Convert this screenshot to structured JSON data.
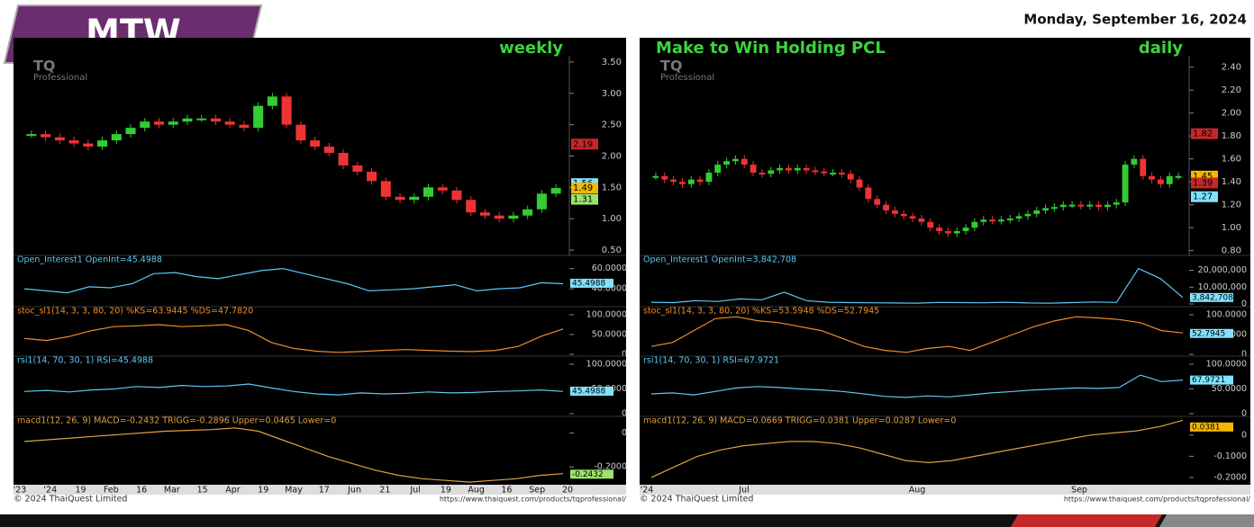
{
  "header": {
    "ticker": "MTW",
    "date": "Monday, September 16, 2024"
  },
  "charts": [
    {
      "title": "weekly",
      "watermark": "TQ",
      "watermark_sub": "Professional",
      "price": {
        "ylim": [
          0.4,
          3.6
        ],
        "yticks": [
          {
            "value": 0.5,
            "label": "0.50"
          },
          {
            "value": 1,
            "label": "1.00"
          },
          {
            "value": 1.5,
            "label": "1.50"
          },
          {
            "value": 2,
            "label": "2.00"
          },
          {
            "value": 2.5,
            "label": "2.50"
          },
          {
            "value": 3,
            "label": "3.00"
          },
          {
            "value": 3.5,
            "label": "3.50"
          }
        ],
        "closes": [
          2.35,
          2.3,
          2.25,
          2.2,
          2.15,
          2.25,
          2.35,
          2.45,
          2.55,
          2.5,
          2.55,
          2.6,
          2.6,
          2.55,
          2.5,
          2.45,
          2.8,
          2.95,
          2.5,
          2.25,
          2.15,
          2.05,
          1.85,
          1.75,
          1.6,
          1.35,
          1.3,
          1.35,
          1.5,
          1.45,
          1.3,
          1.1,
          1.05,
          1.0,
          1.05,
          1.15,
          1.4,
          1.49
        ],
        "tags": [
          2.19,
          1.56,
          1.49,
          1.31
        ],
        "tag_colors": [
          "#c62828",
          "#7fe3ff",
          "#f5b800",
          "#9be36a"
        ]
      },
      "panels": [
        {
          "label": "Open_Interest1 OpenInt=45.4988",
          "color": "#5bc8f5",
          "ylim": [
            25,
            65
          ],
          "yticks": [
            {
              "value": 60,
              "label": "60.0000"
            },
            {
              "value": 40,
              "label": "40.0000"
            }
          ],
          "values": [
            40,
            38,
            36,
            42,
            41,
            45,
            55,
            56,
            52,
            50,
            54,
            58,
            60,
            55,
            50,
            45,
            38,
            39,
            40,
            42,
            44,
            38,
            40,
            41,
            46,
            45
          ],
          "tags": [
            45.4988
          ],
          "tag_colors": [
            "#7fe3ff"
          ]
        },
        {
          "label": "stoc_sl1(14, 3, 3, 80, 20) %KS=63.9445 %DS=47.7820",
          "color": "#f08c2a",
          "ylim": [
            0,
            100
          ],
          "yticks": [
            {
              "value": 100,
              "label": "100.0000"
            },
            {
              "value": 50,
              "label": "50.0000"
            },
            0
          ],
          "values": [
            40,
            35,
            45,
            60,
            70,
            72,
            75,
            70,
            72,
            75,
            60,
            30,
            15,
            8,
            5,
            7,
            10,
            12,
            10,
            8,
            7,
            10,
            20,
            45,
            64
          ],
          "tags": [],
          "tag_colors": []
        },
        {
          "label": "rsi1(14, 70, 30, 1) RSI=45.4988",
          "color": "#5bc8f5",
          "ylim": [
            0,
            100
          ],
          "yticks": [
            {
              "value": 100,
              "label": "100.0000"
            },
            {
              "value": 50,
              "label": "50.0000"
            },
            0
          ],
          "values": [
            45,
            47,
            44,
            48,
            50,
            55,
            53,
            57,
            55,
            56,
            60,
            52,
            45,
            40,
            38,
            42,
            40,
            41,
            44,
            42,
            43,
            45,
            46,
            48,
            45
          ],
          "tags": [
            45.4988
          ],
          "tag_colors": [
            "#7fe3ff"
          ]
        },
        {
          "label": "macd1(12, 26, 9) MACD=-0.2432 TRIGG=-0.2896 Upper=0.0465 Lower=0",
          "color": "#e0a040",
          "ylim": [
            -0.3,
            0.05
          ],
          "yticks": [
            0,
            {
              "value": -0.2,
              "label": "-0.2000"
            }
          ],
          "values": [
            -0.05,
            -0.04,
            -0.03,
            -0.02,
            -0.01,
            0,
            0.01,
            0.015,
            0.02,
            0.03,
            0.01,
            -0.04,
            -0.09,
            -0.14,
            -0.18,
            -0.22,
            -0.25,
            -0.27,
            -0.28,
            -0.29,
            -0.28,
            -0.27,
            -0.25,
            -0.24
          ],
          "tags": [
            -0.2432,
            -0.2896
          ],
          "tag_colors": [
            "#9be36a",
            "#f5b800"
          ]
        }
      ],
      "x_labels": [
        "'23",
        "'24",
        "19",
        "Feb",
        "16",
        "Mar",
        "15",
        "Apr",
        "19",
        "May",
        "17",
        "Jun",
        "21",
        "Jul",
        "19",
        "Aug",
        "16",
        "Sep",
        "20"
      ],
      "copyright": "© 2024 ThaiQuest Limited",
      "url": "https://www.thaiquest.com/products/tqprofessional/"
    },
    {
      "title": "Make to Win Holding PCL",
      "subtitle": "daily",
      "watermark": "TQ",
      "watermark_sub": "Professional",
      "price": {
        "ylim": [
          0.75,
          2.5
        ],
        "yticks": [
          {
            "value": 0.8,
            "label": "0.80"
          },
          {
            "value": 1,
            "label": "1.00"
          },
          {
            "value": 1.2,
            "label": "1.20"
          },
          {
            "value": 1.4,
            "label": "1.40"
          },
          {
            "value": 1.6,
            "label": "1.60"
          },
          {
            "value": 1.8,
            "label": "1.80"
          },
          {
            "value": 2,
            "label": "2.00"
          },
          {
            "value": 2.2,
            "label": "2.20"
          },
          {
            "value": 2.4,
            "label": "2.40"
          }
        ],
        "closes": [
          1.45,
          1.42,
          1.4,
          1.38,
          1.42,
          1.4,
          1.48,
          1.55,
          1.58,
          1.6,
          1.55,
          1.48,
          1.47,
          1.5,
          1.52,
          1.5,
          1.52,
          1.5,
          1.49,
          1.48,
          1.48,
          1.47,
          1.42,
          1.35,
          1.25,
          1.2,
          1.15,
          1.12,
          1.1,
          1.08,
          1.05,
          1.0,
          0.97,
          0.95,
          0.97,
          1.0,
          1.05,
          1.07,
          1.06,
          1.07,
          1.08,
          1.1,
          1.12,
          1.15,
          1.17,
          1.18,
          1.2,
          1.2,
          1.19,
          1.2,
          1.18,
          1.2,
          1.22,
          1.55,
          1.6,
          1.45,
          1.42,
          1.38,
          1.45,
          1.45
        ],
        "tags": [
          1.82,
          1.45,
          1.39,
          1.27
        ],
        "tag_colors": [
          "#c62828",
          "#f5b800",
          "#c62828",
          "#7fe3ff"
        ]
      },
      "panels": [
        {
          "label": "Open_Interest1 OpenInt=3,842,708",
          "color": "#5bc8f5",
          "ylim": [
            0,
            24000000
          ],
          "yticks": [
            {
              "value": 20000000,
              "label": "20,000,000"
            },
            {
              "value": 10000000,
              "label": "10,000,000"
            },
            0
          ],
          "values": [
            1000000,
            800000,
            2000000,
            1500000,
            3000000,
            2500000,
            7000000,
            2000000,
            1000000,
            800000,
            700000,
            600000,
            500000,
            900000,
            800000,
            700000,
            1000000,
            600000,
            500000,
            800000,
            1200000,
            900000,
            21000000,
            15000000,
            3842708
          ],
          "tags": [
            {
              "value": 3842708,
              "label": "3,842,708"
            }
          ],
          "tag_colors": [
            "#7fe3ff"
          ]
        },
        {
          "label": "stoc_sl1(14, 3, 3, 80, 20) %KS=53.5948 %DS=52.7945",
          "color": "#f08c2a",
          "ylim": [
            0,
            100
          ],
          "yticks": [
            {
              "value": 100,
              "label": "100.0000"
            },
            {
              "value": 50,
              "label": "50.0000"
            },
            0
          ],
          "values": [
            20,
            30,
            60,
            90,
            95,
            85,
            80,
            70,
            60,
            40,
            20,
            10,
            5,
            15,
            20,
            10,
            30,
            50,
            70,
            85,
            95,
            92,
            88,
            80,
            60,
            54
          ],
          "tags": [
            52.7945
          ],
          "tag_colors": [
            "#7fe3ff"
          ]
        },
        {
          "label": "rsi1(14, 70, 30, 1) RSI=67.9721",
          "color": "#5bc8f5",
          "ylim": [
            0,
            100
          ],
          "yticks": [
            {
              "value": 100,
              "label": "100.0000"
            },
            {
              "value": 50,
              "label": "50.0000"
            },
            0
          ],
          "values": [
            40,
            42,
            38,
            45,
            52,
            55,
            53,
            50,
            48,
            45,
            40,
            35,
            33,
            36,
            34,
            38,
            42,
            45,
            48,
            50,
            52,
            51,
            53,
            78,
            65,
            68
          ],
          "tags": [
            67.9721
          ],
          "tag_colors": [
            "#7fe3ff"
          ]
        },
        {
          "label": "macd1(12, 26, 9) MACD=0.0669 TRIGG=0.0381 Upper=0.0287 Lower=0",
          "color": "#e0a040",
          "ylim": [
            -0.23,
            0.05
          ],
          "yticks": [
            0,
            {
              "value": -0.1,
              "label": "-0.1000"
            },
            {
              "value": -0.2,
              "label": "-0.2000"
            }
          ],
          "values": [
            -0.2,
            -0.15,
            -0.1,
            -0.07,
            -0.05,
            -0.04,
            -0.03,
            -0.03,
            -0.04,
            -0.06,
            -0.09,
            -0.12,
            -0.13,
            -0.12,
            -0.1,
            -0.08,
            -0.06,
            -0.04,
            -0.02,
            0,
            0.01,
            0.02,
            0.04,
            0.07
          ],
          "tags": [
            0.0381
          ],
          "tag_colors": [
            "#f5b800"
          ]
        }
      ],
      "x_labels": [
        "'24",
        "Jul",
        "Aug",
        "Sep"
      ],
      "copyright": "© 2024 ThaiQuest Limited",
      "url": "https://www.thaiquest.com/products/tqprofessional/"
    }
  ]
}
